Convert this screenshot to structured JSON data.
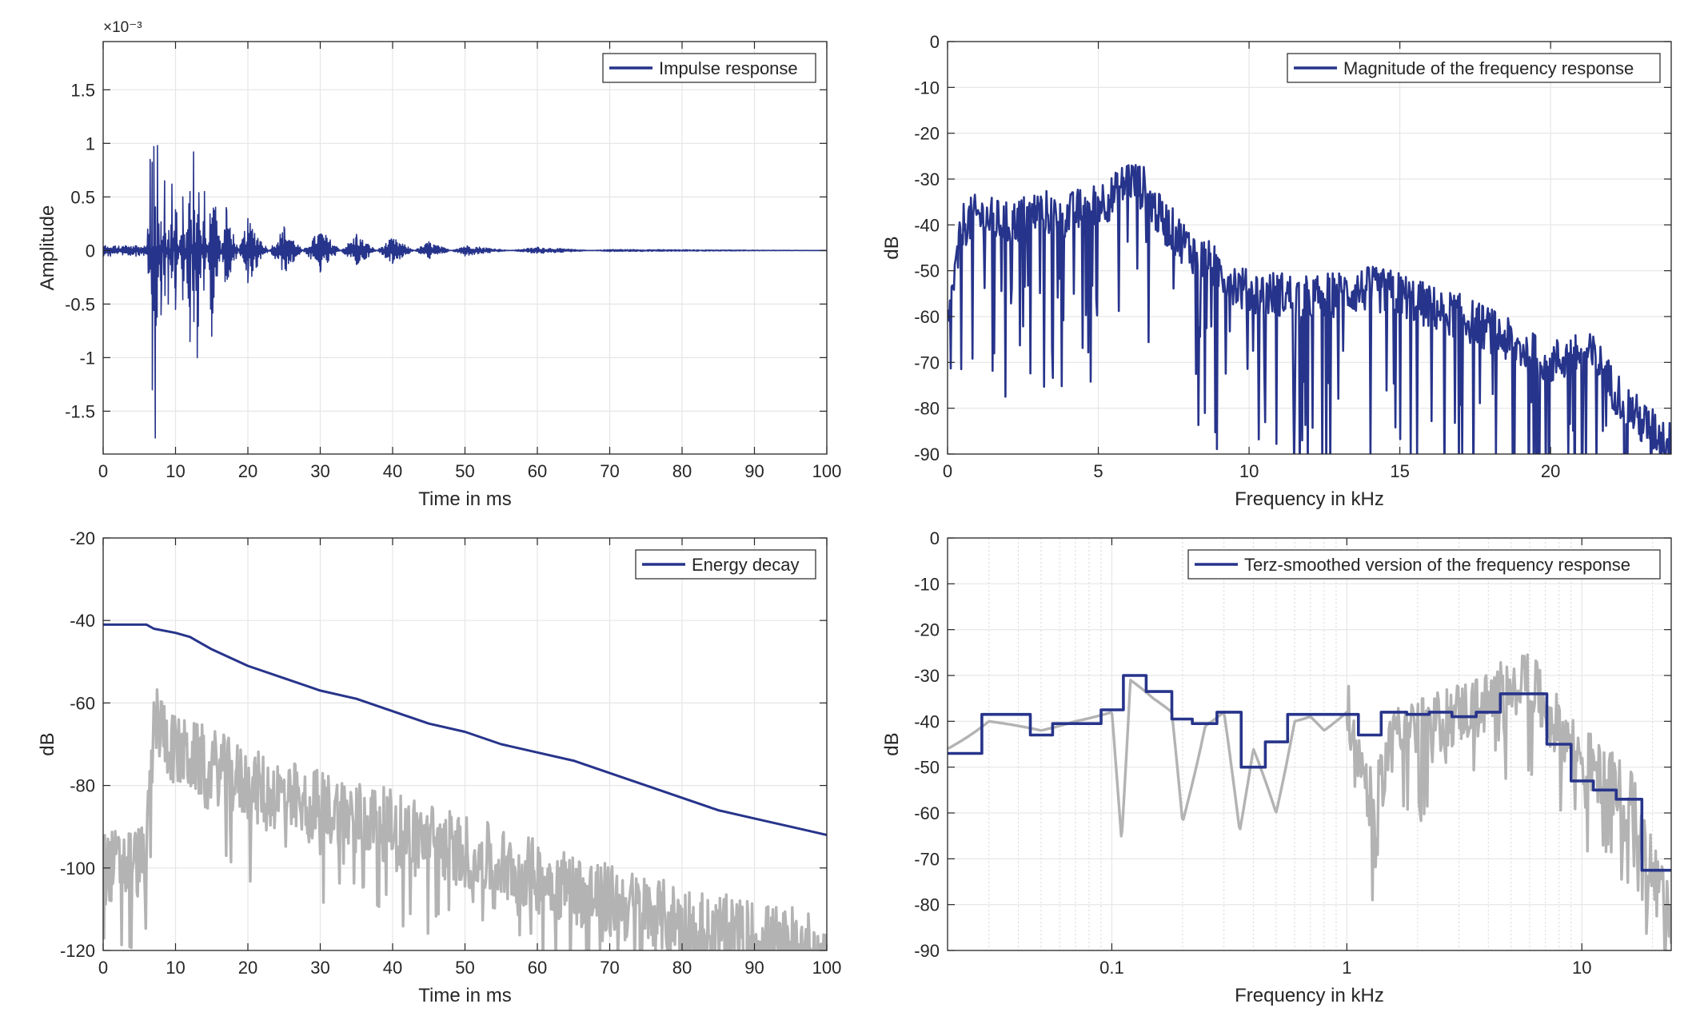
{
  "colors": {
    "series": "#27348b",
    "gray": "#b3b3b3",
    "grid": "#e6e6e6",
    "axis": "#262626"
  },
  "chart_data": [
    {
      "type": "line",
      "legend": [
        "Impulse response"
      ],
      "legend_position": "top-right",
      "xlabel": "Time in ms",
      "ylabel": "Amplitude",
      "exponent": "×10⁻³",
      "xlim": [
        0,
        100
      ],
      "ylim": [
        -1.9,
        1.95
      ],
      "xticks": [
        "0",
        "10",
        "20",
        "30",
        "40",
        "50",
        "60",
        "70",
        "80",
        "90",
        "100"
      ],
      "yticks": [
        "-1.5",
        "-1",
        "-0.5",
        "0",
        "0.5",
        "1",
        "1.5"
      ],
      "grid": true,
      "series": [
        {
          "name": "Impulse response",
          "color": "#27348b",
          "x": [
            0,
            6.0,
            6.5,
            6.8,
            7.0,
            7.2,
            7.5,
            8.0,
            8.5,
            9.0,
            9.5,
            10.0,
            11.0,
            12.0,
            12.5,
            13.0,
            14.0,
            15.0,
            17.0,
            20.0,
            25.0,
            30.0,
            35.0,
            40.0,
            45.0,
            50.0,
            60.0,
            70.0,
            100.0
          ],
          "y": [
            0.03,
            0.04,
            0.85,
            -1.3,
            0.97,
            -1.75,
            0.98,
            -0.6,
            0.65,
            -0.5,
            0.62,
            -0.55,
            0.5,
            -0.85,
            0.92,
            -1.0,
            0.55,
            -0.8,
            0.4,
            -0.3,
            0.22,
            -0.2,
            0.15,
            -0.12,
            0.08,
            -0.05,
            0.03,
            -0.01,
            0.0
          ]
        }
      ]
    },
    {
      "type": "line",
      "legend": [
        "Magnitude of the frequency response"
      ],
      "legend_position": "top-right",
      "xlabel": "Frequency in kHz",
      "ylabel": "dB",
      "xlim": [
        0,
        24
      ],
      "ylim": [
        -90,
        0
      ],
      "xticks": [
        "0",
        "5",
        "10",
        "15",
        "20"
      ],
      "yticks": [
        "0",
        "-10",
        "-20",
        "-30",
        "-40",
        "-50",
        "-60",
        "-70",
        "-80",
        "-90"
      ],
      "grid": true,
      "series": [
        {
          "name": "Magnitude of the frequency response",
          "color": "#27348b",
          "x": [
            0,
            0.5,
            1,
            2,
            3,
            4,
            5,
            5.5,
            6,
            6.5,
            7,
            8,
            9,
            10,
            11,
            12,
            13,
            14,
            15,
            16,
            17,
            18,
            19,
            20,
            21,
            21.5,
            22,
            23,
            24
          ],
          "y": [
            -62,
            -40,
            -38,
            -40,
            -37,
            -38,
            -35,
            -34,
            -30,
            -32,
            -38,
            -45,
            -50,
            -55,
            -55,
            -56,
            -55,
            -54,
            -55,
            -58,
            -60,
            -63,
            -67,
            -70,
            -68,
            -69,
            -75,
            -83,
            -88
          ]
        }
      ]
    },
    {
      "type": "line",
      "legend": [
        "Energy decay"
      ],
      "legend_position": "top-right",
      "xlabel": "Time in ms",
      "ylabel": "dB",
      "xlim": [
        0,
        100
      ],
      "ylim": [
        -120,
        -20
      ],
      "xticks": [
        "0",
        "10",
        "20",
        "30",
        "40",
        "50",
        "60",
        "70",
        "80",
        "90",
        "100"
      ],
      "yticks": [
        "-20",
        "-40",
        "-60",
        "-80",
        "-100",
        "-120"
      ],
      "grid": true,
      "series": [
        {
          "name": "Energy decay",
          "color": "#27348b",
          "x": [
            0,
            6,
            7,
            10,
            12,
            15,
            20,
            25,
            30,
            35,
            40,
            45,
            50,
            55,
            60,
            65,
            70,
            75,
            80,
            85,
            90,
            95,
            100
          ],
          "y": [
            -41,
            -41,
            -42,
            -43,
            -44,
            -47,
            -51,
            -54,
            -57,
            -59,
            -62,
            -65,
            -67,
            -70,
            -72,
            -74,
            -77,
            -80,
            -83,
            -86,
            -88,
            -90,
            -92
          ]
        },
        {
          "color": "#b3b3b3",
          "x": [
            0,
            6,
            7,
            10,
            15,
            20,
            30,
            40,
            50,
            60,
            70,
            80,
            90,
            100
          ],
          "y": [
            -100,
            -98,
            -63,
            -72,
            -75,
            -80,
            -85,
            -90,
            -96,
            -102,
            -108,
            -113,
            -117,
            -120
          ]
        }
      ]
    },
    {
      "type": "line",
      "legend": [
        "Terz-smoothed version of the frequency response"
      ],
      "legend_position": "top-right",
      "xlabel": "Frequency in kHz",
      "ylabel": "dB",
      "xscale": "log",
      "xlim": [
        0.02,
        24
      ],
      "ylim": [
        -90,
        0
      ],
      "xticks": [
        "0.1",
        "1",
        "10"
      ],
      "yticks": [
        "0",
        "-10",
        "-20",
        "-30",
        "-40",
        "-50",
        "-60",
        "-70",
        "-80",
        "-90"
      ],
      "grid": true,
      "series": [
        {
          "name": "Terz-smoothed version of the frequency response",
          "color": "#27348b",
          "step": true,
          "x": [
            0.02,
            0.028,
            0.035,
            0.045,
            0.056,
            0.071,
            0.09,
            0.112,
            0.14,
            0.18,
            0.22,
            0.28,
            0.355,
            0.45,
            0.56,
            0.71,
            0.9,
            1.12,
            1.4,
            1.8,
            2.24,
            2.8,
            3.55,
            4.5,
            5.6,
            7.1,
            9.0,
            11.2,
            14.0,
            18.0,
            24.0
          ],
          "y": [
            -47,
            -38.5,
            -38.5,
            -43,
            -40.5,
            -40.5,
            -37.5,
            -30,
            -33.5,
            -39.5,
            -40.5,
            -38,
            -50,
            -44.5,
            -38.5,
            -38.5,
            -38.5,
            -43,
            -38,
            -38.5,
            -38,
            -39,
            -38,
            -34,
            -34,
            -45,
            -53,
            -55,
            -57,
            -72.5,
            -72.5
          ]
        },
        {
          "color": "#b3b3b3",
          "x": [
            0.02,
            0.03,
            0.05,
            0.07,
            0.1,
            0.11,
            0.12,
            0.15,
            0.18,
            0.2,
            0.25,
            0.3,
            0.35,
            0.4,
            0.5,
            0.6,
            0.7,
            0.8,
            1.0,
            1.3,
            1.6,
            2.0,
            3.0,
            4.0,
            5.0,
            6.0,
            7.0,
            9.0,
            12.0,
            16.0,
            24.0
          ],
          "y": [
            -46,
            -40,
            -42,
            -40,
            -38,
            -66,
            -31,
            -35,
            -38,
            -62,
            -41,
            -38,
            -64,
            -46,
            -60,
            -40,
            -39,
            -42,
            -38,
            -60,
            -39,
            -42,
            -38,
            -36,
            -30,
            -31,
            -38,
            -45,
            -52,
            -57,
            -85
          ]
        }
      ]
    }
  ]
}
